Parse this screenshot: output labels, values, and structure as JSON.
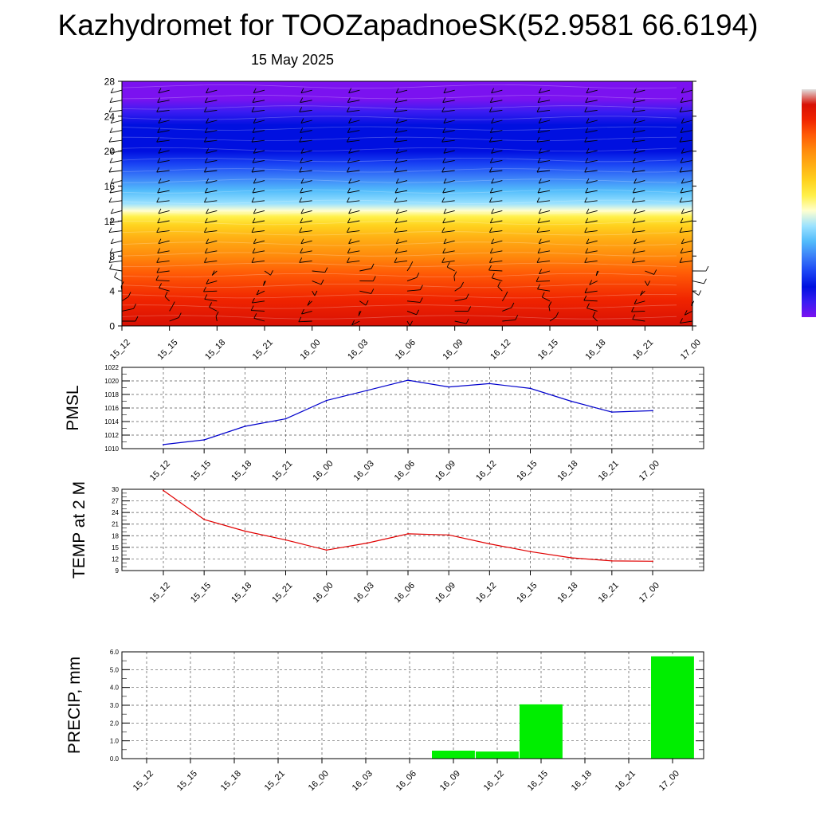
{
  "title": "Kazhydromet for TOOZapadnoeSK(52.9581 66.6194)",
  "subtitle": "15 May 2025",
  "colors": {
    "pmsl_line": "#0000cc",
    "temp_line": "#e00000",
    "precip_bar": "#00ee00",
    "colorbar": [
      "#7b12f0",
      "#3a1cf2",
      "#0010e0",
      "#1a44f4",
      "#3b7ff8",
      "#52bcfb",
      "#9be2ff",
      "#ffffd0",
      "#fff04a",
      "#ffd21e",
      "#ffae14",
      "#ff8a0c",
      "#ff5a06",
      "#f02400",
      "#d81004",
      "#e0e0e0"
    ]
  },
  "chart_data": [
    {
      "type": "heatmap",
      "name": "cross-section",
      "x": [
        "15_12",
        "15_15",
        "15_18",
        "15_21",
        "16_00",
        "16_03",
        "16_06",
        "16_09",
        "16_12",
        "16_15",
        "16_18",
        "16_21",
        "17_00"
      ],
      "ylim": [
        0,
        28
      ],
      "yticks": [
        "0",
        "4",
        "8",
        "12",
        "16",
        "20",
        "24",
        "28"
      ],
      "bands": [
        {
          "y": 0,
          "color": "#d81004"
        },
        {
          "y": 3,
          "color": "#f02400"
        },
        {
          "y": 6,
          "color": "#ff5a06"
        },
        {
          "y": 8,
          "color": "#ff8a0c"
        },
        {
          "y": 10,
          "color": "#ffae14"
        },
        {
          "y": 11.5,
          "color": "#ffd21e"
        },
        {
          "y": 12.5,
          "color": "#fff04a"
        },
        {
          "y": 13.2,
          "color": "#ffffd0"
        },
        {
          "y": 14,
          "color": "#9be2ff"
        },
        {
          "y": 15.5,
          "color": "#52bcfb"
        },
        {
          "y": 17,
          "color": "#3b7ff8"
        },
        {
          "y": 18.5,
          "color": "#1a44f4"
        },
        {
          "y": 20,
          "color": "#0010e0"
        },
        {
          "y": 23,
          "color": "#0010e0"
        },
        {
          "y": 24.5,
          "color": "#3a1cf2"
        },
        {
          "y": 26,
          "color": "#7b12f0"
        },
        {
          "y": 28,
          "color": "#7b12f0"
        }
      ]
    },
    {
      "type": "line",
      "ylabel": "PMSL",
      "x": [
        "15_12",
        "15_15",
        "15_18",
        "15_21",
        "16_00",
        "16_03",
        "16_06",
        "16_09",
        "16_12",
        "16_15",
        "16_18",
        "16_21",
        "17_00"
      ],
      "ylim": [
        1010,
        1022
      ],
      "yticks": [
        "1010",
        "1012",
        "1014",
        "1016",
        "1018",
        "1020",
        "1022"
      ],
      "series": [
        {
          "values": [
            1010.6,
            1011.3,
            1013.3,
            1014.4,
            1017.1,
            1018.6,
            1020.1,
            1019.1,
            1019.6,
            1018.9,
            1017.0,
            1015.4,
            1015.6
          ]
        }
      ]
    },
    {
      "type": "line",
      "ylabel": "TEMP at 2 M",
      "x": [
        "15_12",
        "15_15",
        "15_18",
        "15_21",
        "16_00",
        "16_03",
        "16_06",
        "16_09",
        "16_12",
        "16_15",
        "16_18",
        "16_21",
        "17_00"
      ],
      "ylim": [
        9,
        30
      ],
      "yticks": [
        "9",
        "12",
        "15",
        "18",
        "21",
        "24",
        "27",
        "30"
      ],
      "series": [
        {
          "values": [
            29.7,
            22.2,
            19.2,
            16.9,
            14.3,
            16.1,
            18.5,
            18.2,
            15.9,
            13.9,
            12.3,
            11.5,
            11.4
          ]
        }
      ]
    },
    {
      "type": "bar",
      "ylabel": "PRECIP, mm",
      "x": [
        "15_12",
        "15_15",
        "15_18",
        "15_21",
        "16_00",
        "16_03",
        "16_06",
        "16_09",
        "16_12",
        "16_15",
        "16_18",
        "16_21",
        "17_00"
      ],
      "ylim": [
        0,
        6
      ],
      "yticks": [
        "0.0",
        "1.0",
        "2.0",
        "3.0",
        "4.0",
        "5.0",
        "6.0"
      ],
      "values": [
        0,
        0,
        0,
        0,
        0,
        0,
        0,
        0.45,
        0.4,
        3.05,
        0,
        0,
        5.75
      ]
    }
  ]
}
